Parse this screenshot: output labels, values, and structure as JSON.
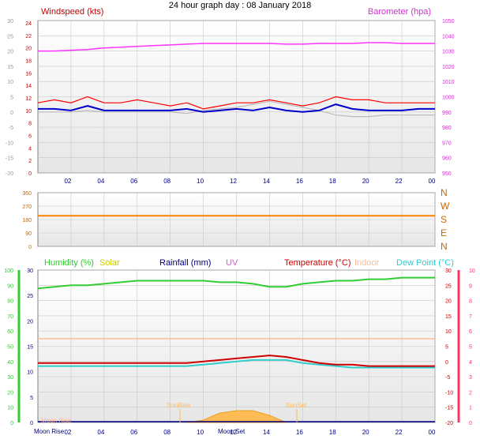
{
  "title": "24 hour graph day : 08 January 2018",
  "colors": {
    "bg": "#ffffff",
    "plot_bg_top": "#ffffff",
    "plot_bg_bottom": "#e8e8e8",
    "grid": "#c8c8c8",
    "wind": "#ff0000",
    "gust": "#ff0000",
    "avg_wind": "#0000cc",
    "baro": "#ff33ff",
    "wind_dir": "#ff8000",
    "humidity": "#33cc33",
    "solar": "#cccc00",
    "rainfall": "#000080",
    "uv": "#cc66cc",
    "temperature": "#cc0000",
    "indoor": "#ffbb99",
    "dewpoint": "#33cccc",
    "chill": "#9999ff",
    "temp_axis": "#ff3366",
    "sun_fill": "#ffbb55",
    "dark_text": "#000080"
  },
  "chart_data": [
    {
      "type": "line",
      "panel": "wind-baro",
      "labels": {
        "left": "Windspeed (kts)",
        "right": "Barometer (hpa)"
      },
      "left_axis": {
        "ticks": [
          "-20",
          "-15",
          "-10",
          "-5",
          "0",
          "5",
          "10",
          "15",
          "20",
          "25",
          "30"
        ],
        "range": [
          -20,
          30
        ]
      },
      "left_axis_inner": {
        "ticks": [
          "0",
          "2",
          "4",
          "6",
          "8",
          "10",
          "12",
          "14",
          "16",
          "18",
          "20",
          "22",
          "24"
        ],
        "range": [
          0,
          24
        ]
      },
      "right_axis": {
        "ticks": [
          "950",
          "960",
          "970",
          "980",
          "990",
          "1000",
          "1010",
          "1020",
          "1030",
          "1040",
          "1050"
        ],
        "range": [
          950,
          1050
        ]
      },
      "x_ticks": [
        "02",
        "04",
        "06",
        "08",
        "10",
        "12",
        "14",
        "16",
        "18",
        "20",
        "22",
        "00"
      ],
      "series": [
        {
          "name": "Barometer (hpa)",
          "x": [
            0,
            1,
            2,
            3,
            4,
            5,
            6,
            7,
            8,
            9,
            10,
            11,
            12,
            13,
            14,
            15,
            16,
            17,
            18,
            19,
            20,
            21,
            22,
            23,
            24
          ],
          "values": [
            1030,
            1030,
            1030.5,
            1031,
            1032,
            1032.5,
            1033,
            1033.5,
            1034,
            1034.5,
            1035,
            1035,
            1035,
            1035,
            1035,
            1034.5,
            1034.5,
            1035,
            1035,
            1035,
            1035.5,
            1035.5,
            1035,
            1035,
            1035
          ]
        },
        {
          "name": "",
          "x": [
            0,
            1,
            2,
            3,
            4,
            5,
            6,
            7,
            8,
            9,
            10,
            11,
            12,
            13,
            14,
            15,
            16,
            17,
            18,
            19,
            20,
            21,
            22,
            23,
            24
          ],
          "values": [
            0,
            0,
            0,
            0.5,
            0,
            0,
            0,
            0,
            0,
            -0.5,
            0.5,
            1,
            1.5,
            2.5,
            3.5,
            2.5,
            1.5,
            0.5,
            -1,
            -1.5,
            -1.5,
            -1,
            -1,
            -1,
            -1
          ]
        },
        {
          "name": "",
          "x": [
            0,
            1,
            2,
            3,
            4,
            5,
            6,
            7,
            8,
            9,
            10,
            11,
            12,
            13,
            14,
            15,
            16,
            17,
            18,
            19,
            20,
            21,
            22,
            23,
            24
          ],
          "values": [
            3,
            4,
            3,
            5,
            3,
            3,
            4,
            3,
            2,
            3,
            1,
            2,
            3,
            3,
            4,
            3,
            2,
            3,
            5,
            4,
            4,
            3,
            3,
            3,
            3
          ]
        },
        {
          "name": "",
          "x": [
            0,
            1,
            2,
            3,
            4,
            5,
            6,
            7,
            8,
            9,
            10,
            11,
            12,
            13,
            14,
            15,
            16,
            17,
            18,
            19,
            20,
            21,
            22,
            23,
            24
          ],
          "values": [
            1,
            1,
            0.5,
            2,
            0.5,
            0.5,
            0.5,
            0.5,
            0.5,
            1,
            0,
            0.5,
            1,
            0.5,
            1.5,
            0.5,
            0,
            0.5,
            2.5,
            1,
            0.5,
            0.5,
            0.5,
            1,
            1
          ]
        }
      ]
    },
    {
      "type": "line",
      "panel": "wind-direction",
      "left_axis": {
        "ticks": [
          "0",
          "90",
          "180",
          "270",
          "360"
        ],
        "range": [
          0,
          360
        ]
      },
      "right_axis": {
        "ticks": [
          "N",
          "E",
          "S",
          "W",
          "N"
        ]
      },
      "series": [
        {
          "name": "",
          "x": [
            0,
            24
          ],
          "values": [
            205,
            205
          ]
        }
      ]
    },
    {
      "type": "line",
      "panel": "temp-hum",
      "labels": {
        "humidity": "Humidity (%)",
        "solar": "Solar",
        "rainfall": "Rainfall (mm)",
        "uv": "UV",
        "temperature": "Temperature (°C)",
        "indoor": "Indoor",
        "dewpoint": "Dew Point (°C)"
      },
      "left_axis_humidity": {
        "ticks": [
          "0",
          "10",
          "20",
          "30",
          "40",
          "50",
          "60",
          "70",
          "80",
          "90",
          "100"
        ],
        "range": [
          0,
          100
        ]
      },
      "left_axis_rain": {
        "ticks": [
          "0",
          "5",
          "10",
          "15",
          "20",
          "25",
          "30"
        ],
        "range": [
          0,
          30
        ]
      },
      "right_axis_temp": {
        "ticks": [
          "-20",
          "-15",
          "-10",
          "-5",
          "0",
          "5",
          "10",
          "15",
          "20",
          "25",
          "30"
        ],
        "range": [
          -20,
          30
        ]
      },
      "right_axis_uv": {
        "ticks": [
          "0",
          "1",
          "2",
          "3",
          "4",
          "5",
          "6",
          "7",
          "8",
          "9",
          "10"
        ],
        "range": [
          0,
          10
        ]
      },
      "x_ticks": [
        "02",
        "04",
        "06",
        "08",
        "10",
        "12",
        "14",
        "16",
        "18",
        "20",
        "22",
        "00"
      ],
      "annotations": [
        "Moon Rise",
        "SunRise",
        "Moon Set",
        "SunSet",
        "Moon Rise"
      ],
      "series": [
        {
          "name": "Humidity (%)",
          "x": [
            0,
            1,
            2,
            3,
            4,
            5,
            6,
            7,
            8,
            9,
            10,
            11,
            12,
            13,
            14,
            15,
            16,
            17,
            18,
            19,
            20,
            21,
            22,
            23,
            24
          ],
          "values": [
            88,
            89,
            90,
            90,
            91,
            92,
            93,
            93,
            93,
            93,
            93,
            92,
            92,
            91,
            89,
            89,
            91,
            92,
            93,
            93,
            94,
            94,
            95,
            95,
            95
          ]
        },
        {
          "name": "Temperature (°C)",
          "x": [
            0,
            1,
            2,
            3,
            4,
            5,
            6,
            7,
            8,
            9,
            10,
            11,
            12,
            13,
            14,
            15,
            16,
            17,
            18,
            19,
            20,
            21,
            22,
            23,
            24
          ],
          "values": [
            -0.5,
            -0.5,
            -0.5,
            -0.5,
            -0.5,
            -0.5,
            -0.5,
            -0.5,
            -0.5,
            -0.5,
            0,
            0.5,
            1,
            1.5,
            2,
            1.5,
            0.5,
            -0.5,
            -1,
            -1,
            -1.5,
            -1.5,
            -1.5,
            -1.5,
            -1.5
          ]
        },
        {
          "name": "Dew Point (°C)",
          "x": [
            0,
            1,
            2,
            3,
            4,
            5,
            6,
            7,
            8,
            9,
            10,
            11,
            12,
            13,
            14,
            15,
            16,
            17,
            18,
            19,
            20,
            21,
            22,
            23,
            24
          ],
          "values": [
            -1.5,
            -1.5,
            -1.5,
            -1.5,
            -1.5,
            -1.5,
            -1.5,
            -1.5,
            -1.5,
            -1.5,
            -1,
            -0.5,
            0,
            0.5,
            0.5,
            0.5,
            -0.5,
            -1,
            -1.5,
            -2,
            -2,
            -2,
            -2,
            -2,
            -2
          ]
        },
        {
          "name": "Indoor",
          "x": [
            0,
            24
          ],
          "values": [
            7.5,
            7.5
          ]
        },
        {
          "name": "Solar",
          "x": [
            9,
            10,
            11,
            12,
            13,
            14,
            15
          ],
          "values": [
            0,
            1,
            4,
            5,
            5,
            3,
            0
          ]
        }
      ]
    }
  ]
}
